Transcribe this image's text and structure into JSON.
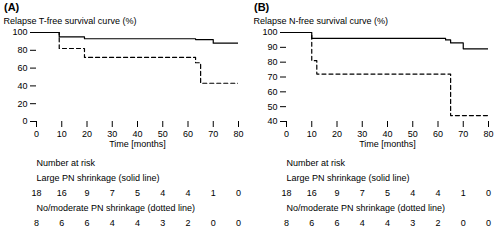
{
  "chart_data": [
    {
      "type": "step",
      "title": "(A)",
      "xlabel": "Time [months]",
      "ylabel": "Relapse T-free survival curve (%)",
      "xlim": [
        0,
        80
      ],
      "ylim": [
        0,
        100
      ],
      "xticks": [
        0,
        10,
        20,
        30,
        40,
        50,
        60,
        70,
        80
      ],
      "yticks": [
        0,
        20,
        40,
        60,
        80,
        100
      ],
      "series": [
        {
          "line_style": "solid",
          "color": "#000000",
          "x": [
            0,
            9,
            9,
            19,
            19,
            63,
            63,
            70,
            70,
            80
          ],
          "values": [
            100,
            100,
            95,
            95,
            93,
            93,
            92,
            92,
            88,
            88
          ]
        },
        {
          "line_style": "dashed",
          "color": "#000000",
          "x": [
            0,
            9,
            9,
            19,
            19,
            63,
            63,
            65,
            65,
            70,
            70,
            80
          ],
          "values": [
            100,
            100,
            82,
            82,
            72,
            72,
            66,
            66,
            43,
            43,
            43,
            43
          ]
        }
      ],
      "risk_table": {
        "title": "Number at risk",
        "x": [
          0,
          10,
          20,
          30,
          40,
          50,
          60,
          70,
          80
        ],
        "rows": [
          {
            "label": "Large PN shrinkage (solid line)",
            "values": [
              18,
              16,
              9,
              7,
              5,
              4,
              4,
              1,
              0
            ]
          },
          {
            "label": "No/moderate PN shrinkage (dotted line)",
            "values": [
              8,
              6,
              6,
              4,
              4,
              3,
              2,
              0,
              0
            ]
          }
        ]
      }
    },
    {
      "type": "step",
      "title": "(B)",
      "xlabel": "Time [months]",
      "ylabel": "Relapse N-free survival curve (%)",
      "xlim": [
        0,
        80
      ],
      "ylim": [
        40,
        100
      ],
      "xticks": [
        0,
        10,
        20,
        30,
        40,
        50,
        60,
        70,
        80
      ],
      "yticks": [
        40,
        50,
        60,
        70,
        80,
        90,
        100
      ],
      "series": [
        {
          "line_style": "solid",
          "color": "#000000",
          "x": [
            0,
            10,
            10,
            63,
            63,
            65,
            65,
            70,
            70,
            80
          ],
          "values": [
            100,
            100,
            96,
            96,
            95,
            95,
            93,
            93,
            89,
            89
          ]
        },
        {
          "line_style": "dashed",
          "color": "#000000",
          "x": [
            0,
            10,
            10,
            12,
            12,
            63,
            63,
            65,
            65,
            70,
            70,
            80
          ],
          "values": [
            100,
            100,
            81,
            81,
            72,
            72,
            72,
            72,
            44,
            44,
            44,
            44
          ]
        }
      ],
      "risk_table": {
        "title": "Number at risk",
        "x": [
          0,
          10,
          20,
          30,
          40,
          50,
          60,
          70,
          80
        ],
        "rows": [
          {
            "label": "Large PN shrinkage (solid line)",
            "values": [
              18,
              16,
              9,
              7,
              5,
              4,
              4,
              1,
              0
            ]
          },
          {
            "label": "No/moderate PN shrinkage (dotted line)",
            "values": [
              8,
              6,
              6,
              4,
              4,
              3,
              2,
              0,
              0
            ]
          }
        ]
      }
    }
  ]
}
